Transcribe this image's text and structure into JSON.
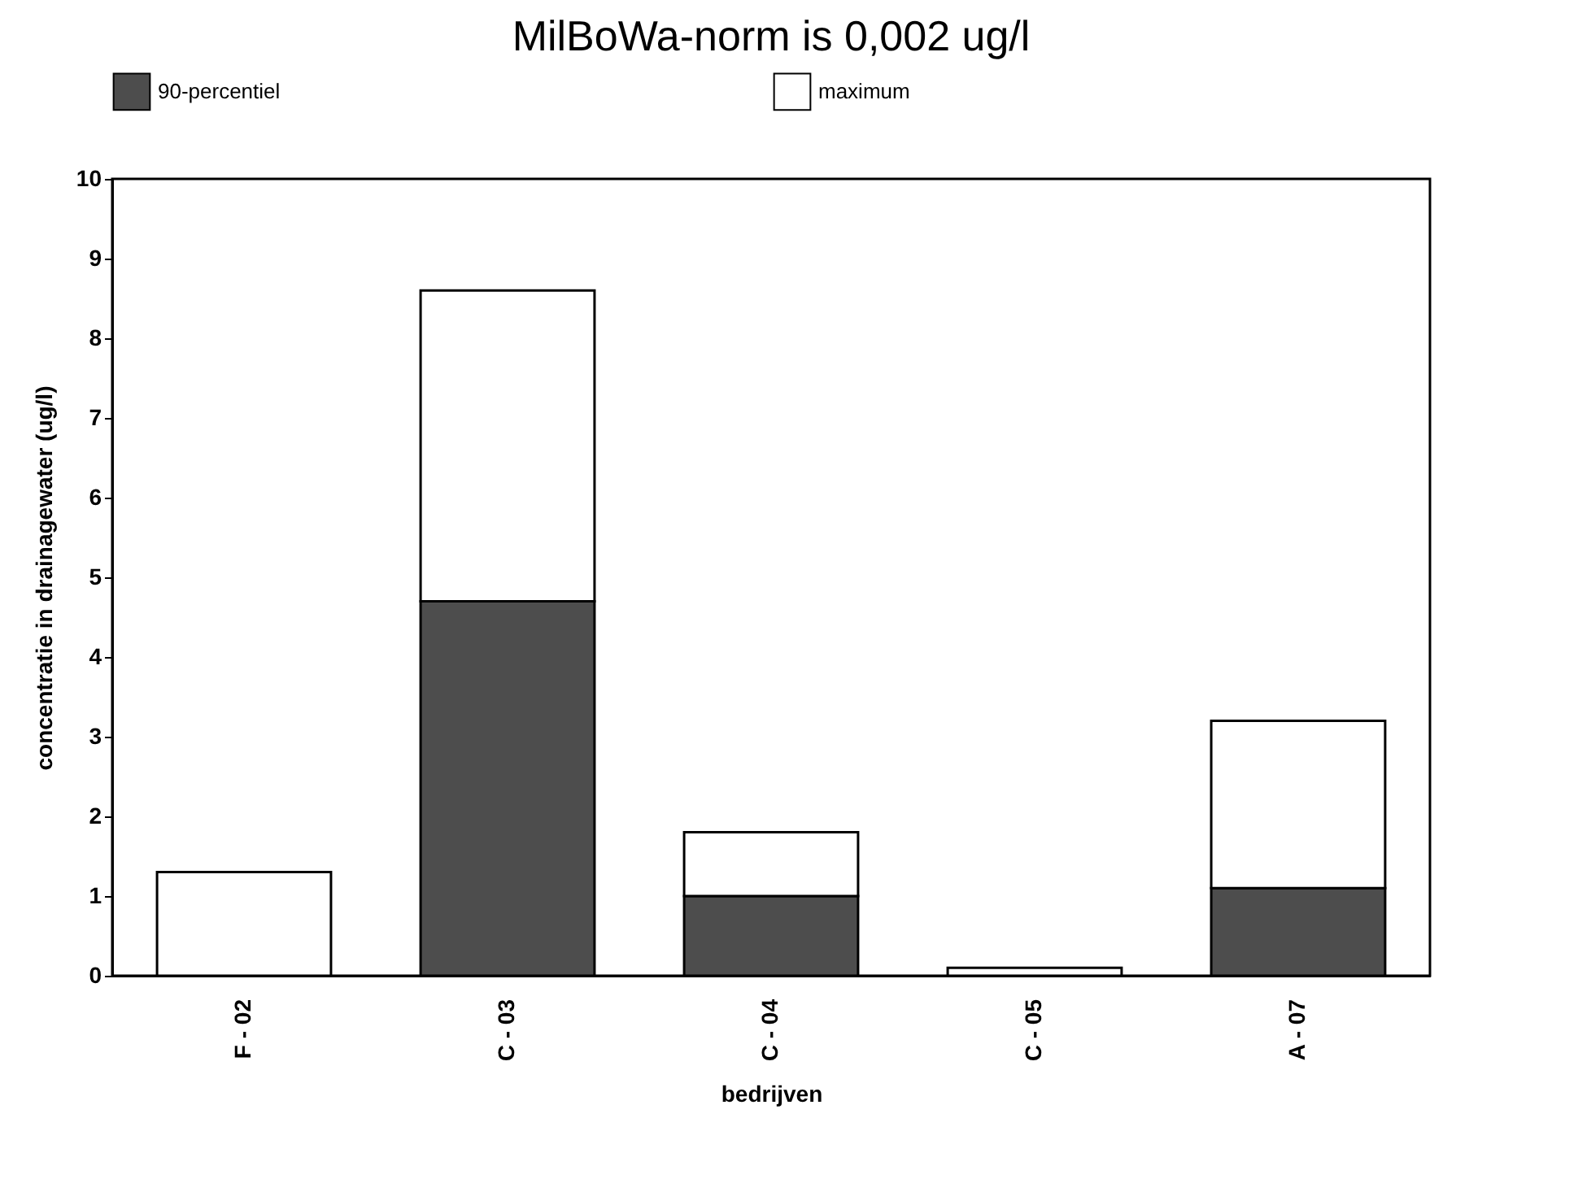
{
  "chart_data": {
    "type": "bar",
    "title": "MilBoWa-norm is 0,002 ug/l",
    "xlabel": "bedrijven",
    "ylabel": "concentratie in drainagewater (ug/l)",
    "categories": [
      "F - 02",
      "C - 03",
      "C - 04",
      "C - 05",
      "A - 07"
    ],
    "series": [
      {
        "name": "90-percentiel",
        "color": "#4d4d4d",
        "values": [
          0,
          4.7,
          1.0,
          0,
          1.1
        ]
      },
      {
        "name": "maximum",
        "color": "#ffffff",
        "values": [
          1.3,
          3.9,
          0.8,
          0.1,
          2.1
        ]
      }
    ],
    "stacked": true,
    "ylim": [
      0,
      10
    ],
    "yticks": [
      0,
      1,
      2,
      3,
      4,
      5,
      6,
      7,
      8,
      9,
      10
    ],
    "grid": false,
    "legend": "top"
  }
}
